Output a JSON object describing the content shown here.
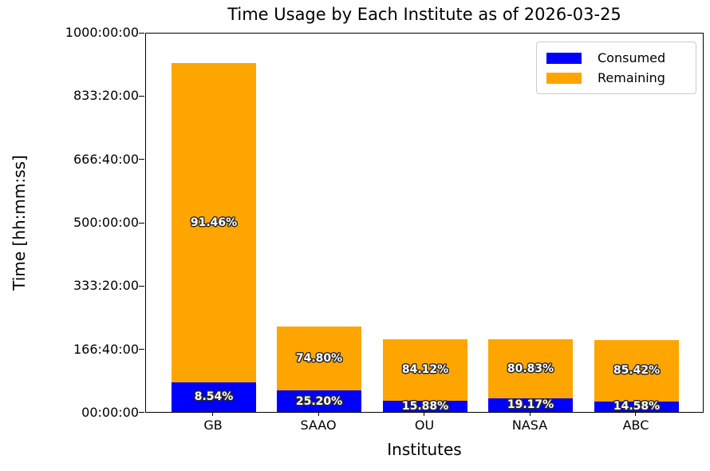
{
  "title": "Time Usage by Each Institute as of 2026-03-25",
  "chart_data": {
    "type": "bar",
    "stacked": true,
    "title": "Time Usage by Each Institute as of 2026-03-25",
    "xlabel": "Institutes",
    "ylabel": "Time [hh:mm:ss]",
    "categories": [
      "GB",
      "SAAO",
      "OU",
      "NASA",
      "ABC"
    ],
    "ylim_hours": [
      0,
      1000
    ],
    "ytick_labels_top_to_bottom": [
      "1000:00:00",
      "833:20:00",
      "666:40:00",
      "500:00:00",
      "333:20:00",
      "166:40:00",
      "00:00:00"
    ],
    "grid": false,
    "legend_position": "upper right",
    "legend_entries": [
      "Consumed",
      "Remaining"
    ],
    "series": [
      {
        "name": "Consumed",
        "color": "#0000ff",
        "values_hours": [
          78.9,
          56.8,
          30.5,
          37.1,
          27.9
        ],
        "percent_labels": [
          "8.54%",
          "25.20%",
          "15.88%",
          "19.17%",
          "14.58%"
        ]
      },
      {
        "name": "Remaining",
        "color": "#ffa500",
        "values_hours": [
          845.5,
          168.6,
          161.4,
          156.2,
          163.3
        ],
        "percent_labels": [
          "91.46%",
          "74.80%",
          "84.12%",
          "80.83%",
          "85.42%"
        ]
      }
    ],
    "totals_hours_estimated": [
      924.4,
      225.4,
      191.9,
      193.3,
      191.2
    ]
  },
  "colors": {
    "consumed": "#0000ff",
    "remaining": "#ffa500",
    "background": "#ffffff",
    "text": "#000000",
    "legend_border": "#cccccc"
  }
}
